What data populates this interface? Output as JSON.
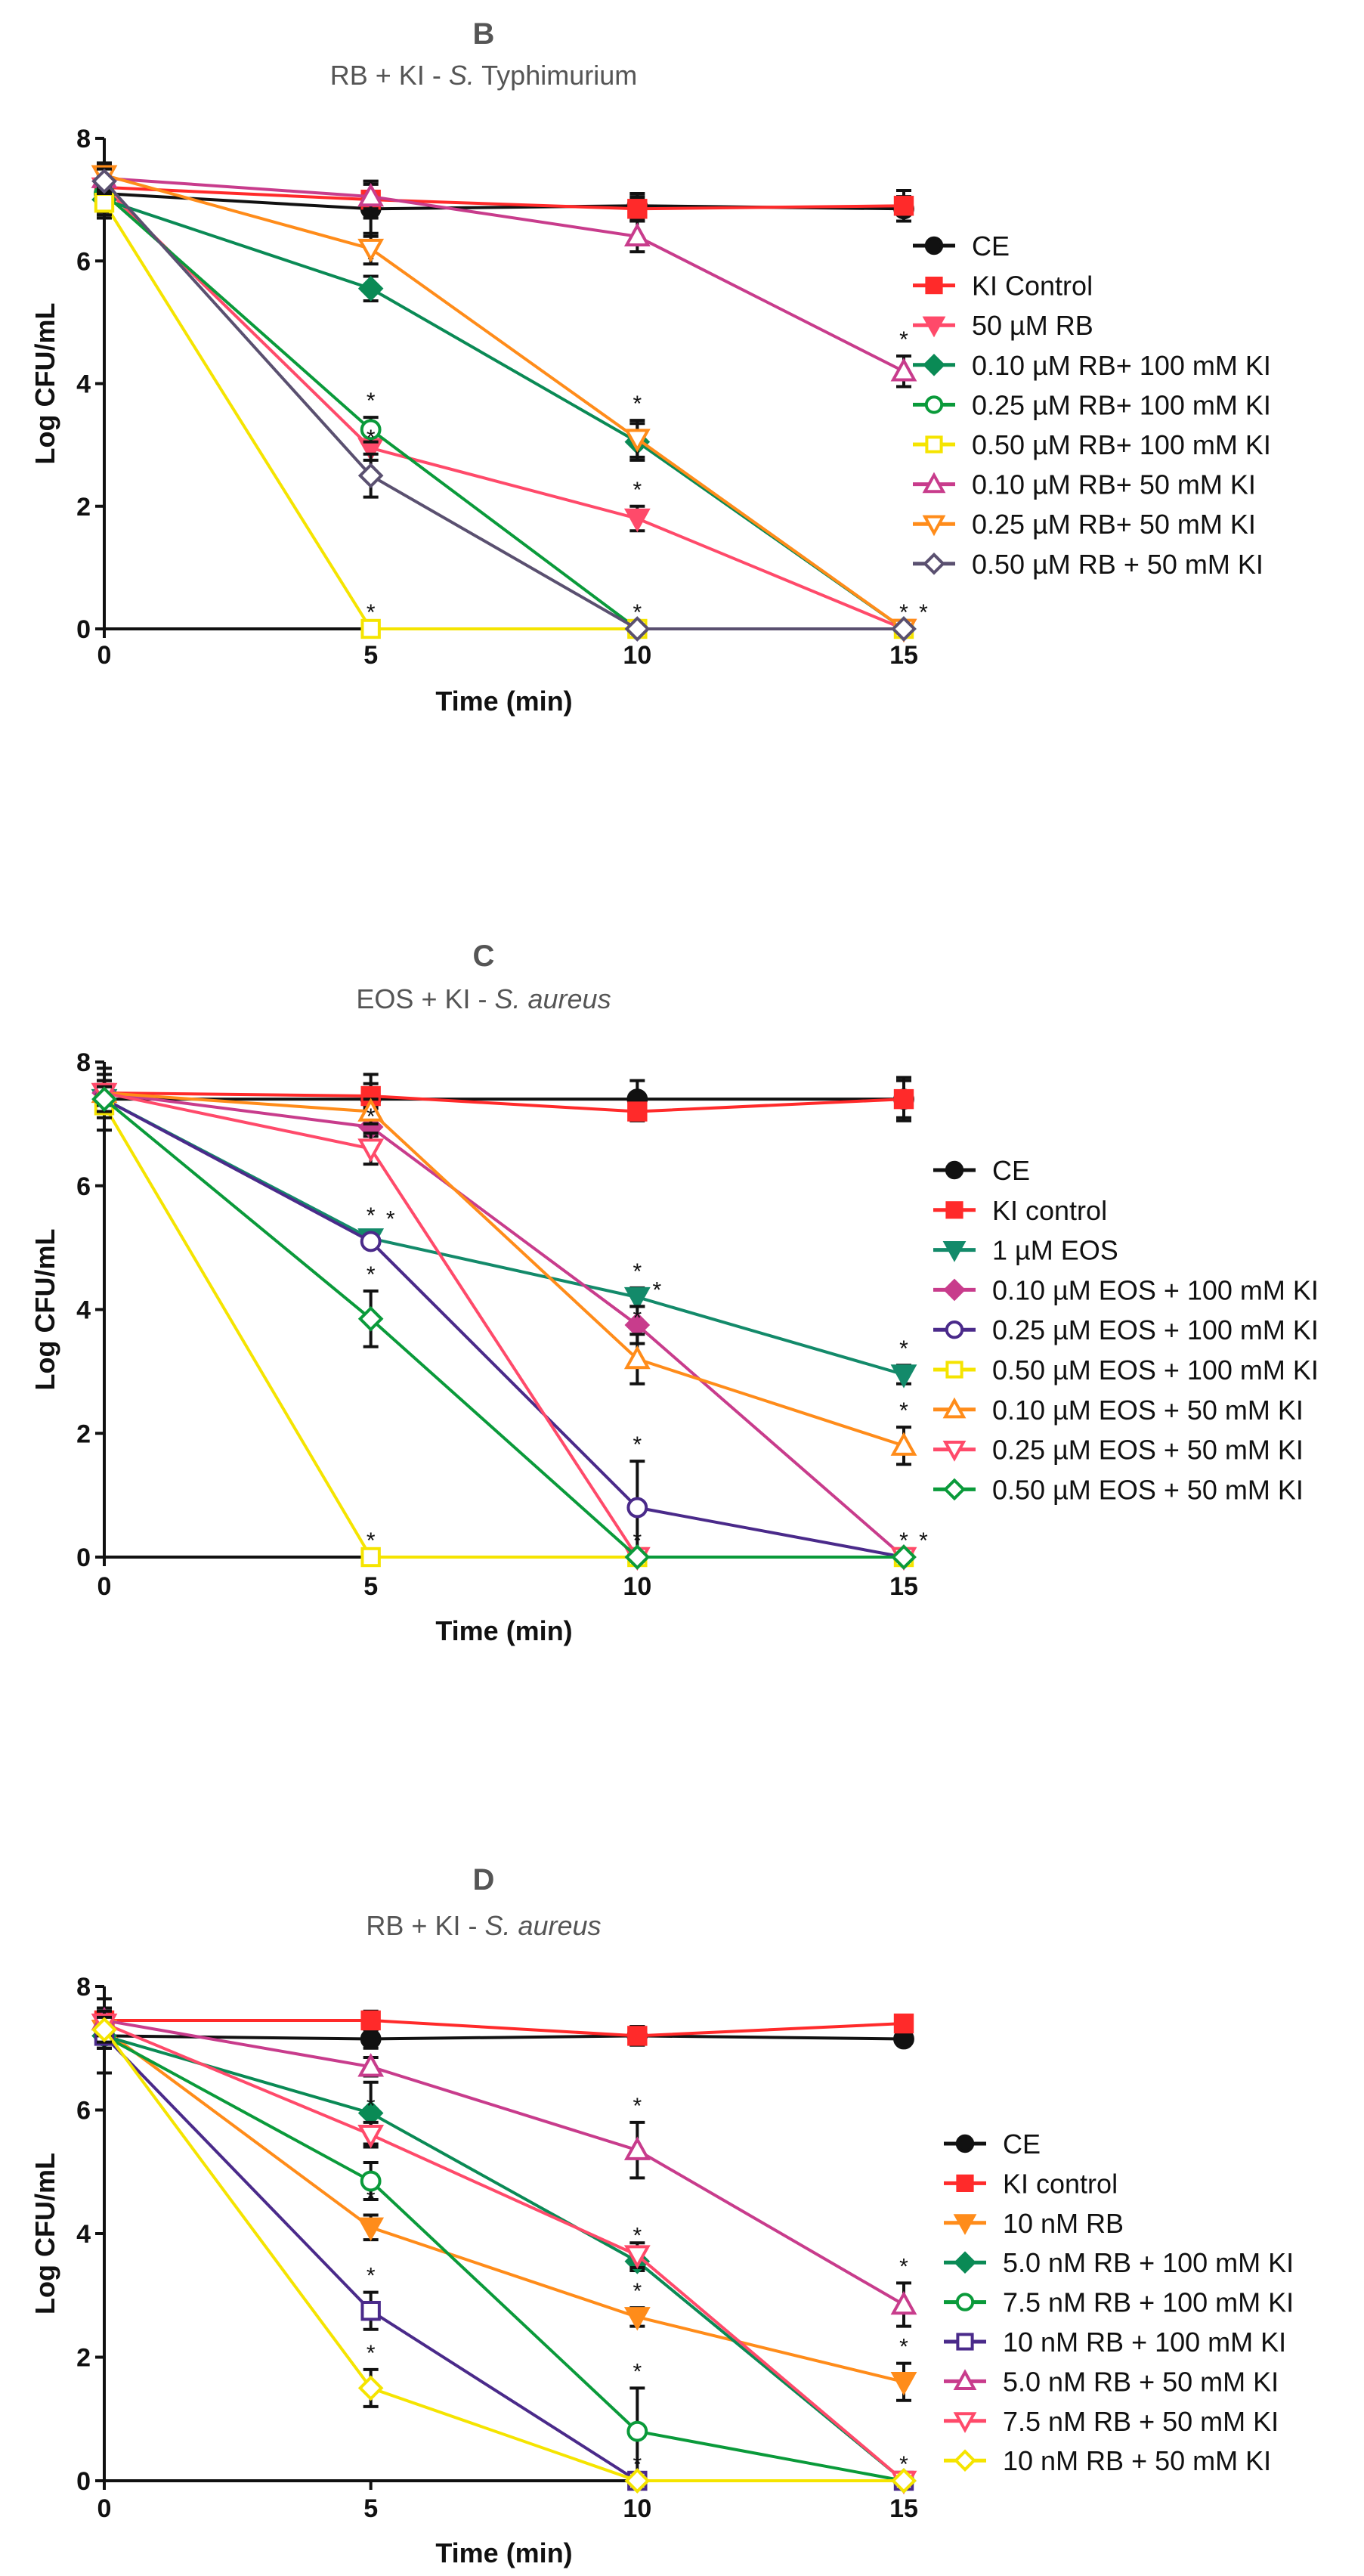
{
  "chart_data": [
    {
      "type": "line",
      "panel": "B",
      "title_prefix": "RB + KI - ",
      "title_italic": "S.",
      "title_suffix": " Typhimurium",
      "xlabel": "Time (min)",
      "ylabel": "Log CFU/mL",
      "x": [
        0,
        5,
        10,
        15
      ],
      "xticks": [
        "0",
        "5",
        "10",
        "15"
      ],
      "yticks": [
        "0",
        "2",
        "4",
        "6",
        "8"
      ],
      "ylim": [
        0,
        8
      ],
      "legend_position": "right",
      "series": [
        {
          "name": "CE",
          "color": "#111111",
          "marker": "circle",
          "filled": true,
          "values": [
            7.1,
            6.85,
            6.9,
            6.85
          ],
          "err": [
            0.4,
            0.45,
            0.2,
            0.2
          ],
          "sig": [
            false,
            false,
            false,
            false
          ]
        },
        {
          "name": "KI Control",
          "color": "#ff2a2a",
          "marker": "square",
          "filled": true,
          "values": [
            7.2,
            7.0,
            6.85,
            6.9
          ],
          "err": [
            0.3,
            0.3,
            0.2,
            0.25
          ],
          "sig": [
            false,
            false,
            false,
            false
          ]
        },
        {
          "name": "50 µM RB",
          "color": "#ff4a6a",
          "marker": "tri-down",
          "filled": true,
          "values": [
            7.2,
            2.95,
            1.8,
            0
          ],
          "err": [
            0.2,
            0.2,
            0.2,
            0
          ],
          "sig": [
            false,
            false,
            true,
            true
          ]
        },
        {
          "name": "0.10 µM RB+ 100 mM KI",
          "color": "#0a8a55",
          "marker": "diamond",
          "filled": true,
          "values": [
            7.0,
            5.55,
            3.05,
            0
          ],
          "err": [
            0.2,
            0.2,
            0.3,
            0
          ],
          "sig": [
            false,
            true,
            false,
            false
          ]
        },
        {
          "name": "0.25 µM RB+ 100 mM KI",
          "color": "#0a9a3a",
          "marker": "circle",
          "filled": false,
          "values": [
            7.1,
            3.25,
            0,
            0
          ],
          "err": [
            0.2,
            0.2,
            0,
            0
          ],
          "sig": [
            false,
            true,
            true,
            false
          ]
        },
        {
          "name": "0.50 µM RB+ 100 mM KI",
          "color": "#f5e400",
          "marker": "square",
          "filled": false,
          "values": [
            6.95,
            0,
            0,
            0
          ],
          "err": [
            0.2,
            0,
            0,
            0
          ],
          "sig": [
            false,
            true,
            false,
            false
          ]
        },
        {
          "name": "0.10 µM RB+ 50 mM KI",
          "color": "#c83c8c",
          "marker": "tri-up",
          "filled": false,
          "values": [
            7.35,
            7.05,
            6.4,
            4.2
          ],
          "err": [
            0.2,
            0.2,
            0.25,
            0.25
          ],
          "sig": [
            false,
            false,
            false,
            true
          ]
        },
        {
          "name": "0.25 µM RB+ 50 mM KI",
          "color": "#ff8c1a",
          "marker": "tri-down",
          "filled": false,
          "values": [
            7.4,
            6.2,
            3.1,
            0
          ],
          "err": [
            0.2,
            0.25,
            0.3,
            0
          ],
          "sig": [
            false,
            true,
            true,
            true
          ]
        },
        {
          "name": "0.50 µM RB + 50 mM KI",
          "color": "#5a5070",
          "marker": "diamond",
          "filled": false,
          "values": [
            7.3,
            2.5,
            0,
            0
          ],
          "err": [
            0.2,
            0.35,
            0,
            0
          ],
          "sig": [
            false,
            true,
            false,
            false
          ]
        }
      ]
    },
    {
      "type": "line",
      "panel": "C",
      "title_prefix": "EOS + KI - ",
      "title_italic": "S. aureus",
      "title_suffix": "",
      "xlabel": "Time (min)",
      "ylabel": "Log CFU/mL",
      "x": [
        0,
        5,
        10,
        15
      ],
      "xticks": [
        "0",
        "5",
        "10",
        "15"
      ],
      "yticks": [
        "0",
        "2",
        "4",
        "6",
        "8"
      ],
      "ylim": [
        0,
        8
      ],
      "legend_position": "right",
      "series": [
        {
          "name": "CE",
          "color": "#111111",
          "marker": "circle",
          "filled": true,
          "values": [
            7.4,
            7.4,
            7.4,
            7.4
          ],
          "err": [
            0.5,
            0.4,
            0.3,
            0.35
          ],
          "sig": [
            false,
            false,
            false,
            false
          ]
        },
        {
          "name": "KI control",
          "color": "#ff2a2a",
          "marker": "square",
          "filled": true,
          "values": [
            7.5,
            7.45,
            7.2,
            7.4
          ],
          "err": [
            0.3,
            0.2,
            0.15,
            0.3
          ],
          "sig": [
            false,
            false,
            false,
            false
          ]
        },
        {
          "name": "1 µM EOS",
          "color": "#138a6a",
          "marker": "tri-down",
          "filled": true,
          "values": [
            7.4,
            5.15,
            4.2,
            2.95
          ],
          "err": [
            0.2,
            0.1,
            0.15,
            0.15
          ],
          "sig": [
            false,
            true,
            true,
            true
          ]
        },
        {
          "name": "0.10 µM EOS + 100 mM KI",
          "color": "#c83c8c",
          "marker": "diamond",
          "filled": true,
          "values": [
            7.5,
            6.95,
            3.75,
            0
          ],
          "err": [
            0.2,
            0.15,
            0.3,
            0
          ],
          "sig": [
            false,
            false,
            true,
            false
          ]
        },
        {
          "name": "0.25 µM EOS + 100 mM KI",
          "color": "#4a2a8a",
          "marker": "circle",
          "filled": false,
          "values": [
            7.4,
            5.1,
            0.8,
            0
          ],
          "err": [
            0.2,
            0.1,
            0.75,
            0
          ],
          "sig": [
            false,
            true,
            true,
            true
          ]
        },
        {
          "name": "0.50 µM EOS + 100 mM KI",
          "color": "#f5e400",
          "marker": "square",
          "filled": false,
          "values": [
            7.3,
            0,
            0,
            0
          ],
          "err": [
            0.2,
            0,
            0,
            0
          ],
          "sig": [
            false,
            true,
            false,
            false
          ]
        },
        {
          "name": "0.10 µM EOS + 50 mM KI",
          "color": "#ff8c1a",
          "marker": "tri-up",
          "filled": false,
          "values": [
            7.5,
            7.2,
            3.2,
            1.8
          ],
          "err": [
            0.2,
            0.2,
            0.4,
            0.3
          ],
          "sig": [
            false,
            false,
            true,
            true
          ]
        },
        {
          "name": "0.25 µM EOS + 50 mM KI",
          "color": "#ff4a6a",
          "marker": "tri-down",
          "filled": false,
          "values": [
            7.5,
            6.6,
            0,
            0
          ],
          "err": [
            0.2,
            0.25,
            0,
            0
          ],
          "sig": [
            false,
            true,
            true,
            false
          ]
        },
        {
          "name": "0.50 µM EOS + 50 mM KI",
          "color": "#0a9a3a",
          "marker": "diamond",
          "filled": false,
          "values": [
            7.4,
            3.85,
            0,
            0
          ],
          "err": [
            0.2,
            0.45,
            0,
            0
          ],
          "sig": [
            false,
            true,
            false,
            true
          ]
        }
      ]
    },
    {
      "type": "line",
      "panel": "D",
      "title_prefix": "RB + KI - ",
      "title_italic": "S. aureus",
      "title_suffix": "",
      "xlabel": "Time (min)",
      "ylabel": "Log CFU/mL",
      "x": [
        0,
        5,
        10,
        15
      ],
      "xticks": [
        "0",
        "5",
        "10",
        "15"
      ],
      "yticks": [
        "0",
        "2",
        "4",
        "6",
        "8"
      ],
      "ylim": [
        0,
        8
      ],
      "legend_position": "right",
      "series": [
        {
          "name": "CE",
          "color": "#111111",
          "marker": "circle",
          "filled": true,
          "values": [
            7.2,
            7.15,
            7.2,
            7.15
          ],
          "err": [
            0.6,
            0.15,
            0.15,
            0
          ],
          "sig": [
            false,
            false,
            false,
            false
          ]
        },
        {
          "name": "KI control",
          "color": "#ff2a2a",
          "marker": "square",
          "filled": true,
          "values": [
            7.45,
            7.45,
            7.2,
            7.4
          ],
          "err": [
            0.2,
            0.15,
            0.15,
            0
          ],
          "sig": [
            false,
            false,
            false,
            false
          ]
        },
        {
          "name": "10 nM RB",
          "color": "#ff8c1a",
          "marker": "tri-down",
          "filled": true,
          "values": [
            7.3,
            4.1,
            2.65,
            1.6
          ],
          "err": [
            0.2,
            0.2,
            0.15,
            0.3
          ],
          "sig": [
            false,
            true,
            true,
            true
          ]
        },
        {
          "name": "5.0 nM RB + 100 mM KI",
          "color": "#0a8a55",
          "marker": "diamond",
          "filled": true,
          "values": [
            7.2,
            5.95,
            3.55,
            0
          ],
          "err": [
            0.2,
            0.5,
            0.15,
            0
          ],
          "sig": [
            false,
            true,
            true,
            false
          ]
        },
        {
          "name": "7.5 nM RB + 100 mM KI",
          "color": "#0a9a3a",
          "marker": "circle",
          "filled": false,
          "values": [
            7.2,
            4.85,
            0.8,
            0
          ],
          "err": [
            0.2,
            0.3,
            0.7,
            0
          ],
          "sig": [
            false,
            true,
            true,
            false
          ]
        },
        {
          "name": " 10 nM RB + 100 mM KI",
          "color": "#4a2a8a",
          "marker": "square",
          "filled": false,
          "values": [
            7.2,
            2.75,
            0,
            0
          ],
          "err": [
            0.2,
            0.3,
            0,
            0
          ],
          "sig": [
            false,
            true,
            true,
            false
          ]
        },
        {
          "name": "5.0 nM RB + 50 mM KI",
          "color": "#c83c8c",
          "marker": "tri-up",
          "filled": false,
          "values": [
            7.45,
            6.7,
            5.35,
            2.85
          ],
          "err": [
            0.2,
            0.15,
            0.45,
            0.35
          ],
          "sig": [
            false,
            false,
            true,
            true
          ]
        },
        {
          "name": "7.5 nM RB + 50 mM KI",
          "color": "#ff4a6a",
          "marker": "tri-down",
          "filled": false,
          "values": [
            7.4,
            5.6,
            3.65,
            0
          ],
          "err": [
            0.2,
            0.2,
            0.2,
            0
          ],
          "sig": [
            false,
            true,
            false,
            true
          ]
        },
        {
          "name": " 10 nM RB + 50 mM KI",
          "color": "#f5e400",
          "marker": "diamond",
          "filled": false,
          "values": [
            7.3,
            1.5,
            0,
            0
          ],
          "err": [
            0.2,
            0.3,
            0,
            0
          ],
          "sig": [
            false,
            true,
            false,
            false
          ]
        }
      ]
    }
  ]
}
